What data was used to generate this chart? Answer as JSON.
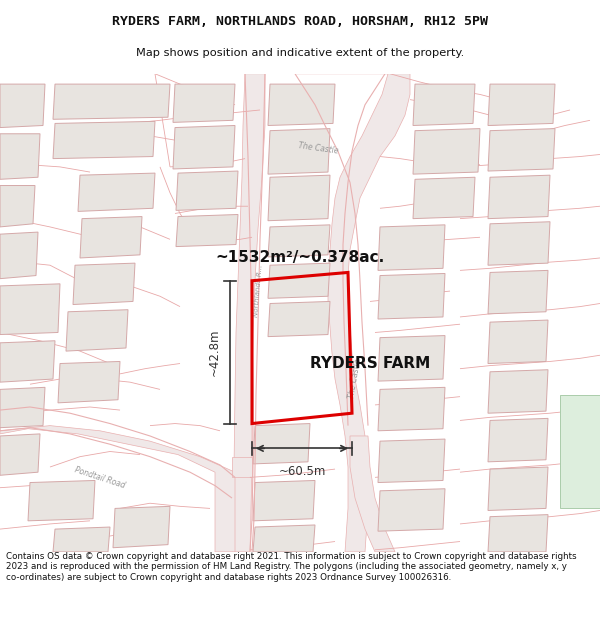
{
  "title_line1": "RYDERS FARM, NORTHLANDS ROAD, HORSHAM, RH12 5PW",
  "title_line2": "Map shows position and indicative extent of the property.",
  "property_label": "RYDERS FARM",
  "area_label": "~1532m²/~0.378ac.",
  "dim_width": "~60.5m",
  "dim_height": "~42.8m",
  "footer_text": "Contains OS data © Crown copyright and database right 2021. This information is subject to Crown copyright and database rights 2023 and is reproduced with the permission of HM Land Registry. The polygons (including the associated geometry, namely x, y co-ordinates) are subject to Crown copyright and database rights 2023 Ordnance Survey 100026316.",
  "map_bg": "#f9f6f4",
  "plot_fill": "none",
  "plot_stroke": "#dd0000",
  "road_fill": "#f0e8e8",
  "road_stroke": "#e8b0b0",
  "building_fill": "#e8e4e0",
  "building_stroke": "#d4a8a8",
  "parcel_stroke": "#e8a8a8",
  "green_fill": "#ddeedd",
  "green_stroke": "#aaccaa",
  "label_color": "#999999",
  "dim_color": "#333333",
  "area_label_color": "#111111"
}
